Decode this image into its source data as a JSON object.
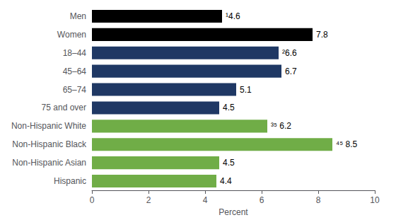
{
  "chart_data": {
    "type": "bar",
    "orientation": "horizontal",
    "categories": [
      "Men",
      "Women",
      "18–44",
      "45–64",
      "65–74",
      "75 and over",
      "Non-Hispanic White",
      "Non-Hispanic Black",
      "Non-Hispanic Asian",
      "Hispanic"
    ],
    "values": [
      4.6,
      7.8,
      6.6,
      6.7,
      5.1,
      4.5,
      6.2,
      8.5,
      4.5,
      4.4
    ],
    "value_labels": [
      "¹4.6",
      "7.8",
      "²6.6",
      "6.7",
      "5.1",
      "4.5",
      "³⁵ 6.2",
      "⁴⁵ 8.5",
      "4.5",
      "4.4"
    ],
    "data_labels": true,
    "colors": [
      "#000000",
      "#000000",
      "#1f3864",
      "#1f3864",
      "#1f3864",
      "#1f3864",
      "#70ad47",
      "#70ad47",
      "#70ad47",
      "#70ad47"
    ],
    "xlabel": "Percent",
    "xlim": [
      0,
      10
    ],
    "xticks": [
      0,
      2,
      4,
      6,
      8,
      10
    ],
    "grid": false
  }
}
